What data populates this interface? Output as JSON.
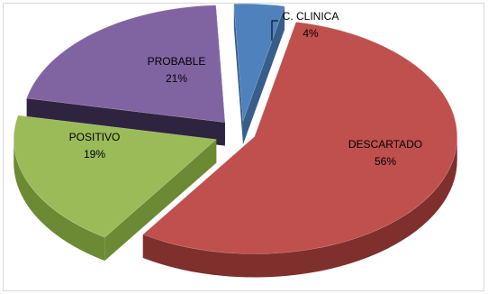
{
  "chart_data": {
    "type": "pie",
    "style": "3d-exploded",
    "legend": "none",
    "slices": [
      {
        "label": "C. CLINICA",
        "value": 4,
        "value_label": "4%",
        "color": "#4f81bd",
        "side_color": "#385d8a"
      },
      {
        "label": "DESCARTADO",
        "value": 56,
        "value_label": "56%",
        "color": "#c0504d",
        "side_color": "#7f2f2c"
      },
      {
        "label": "POSITIVO",
        "value": 19,
        "value_label": "19%",
        "color": "#9bbb59",
        "side_color": "#6b8a33"
      },
      {
        "label": "PROBABLE",
        "value": 21,
        "value_label": "21%",
        "color": "#8064a2",
        "side_color": "#2f2440"
      }
    ]
  }
}
